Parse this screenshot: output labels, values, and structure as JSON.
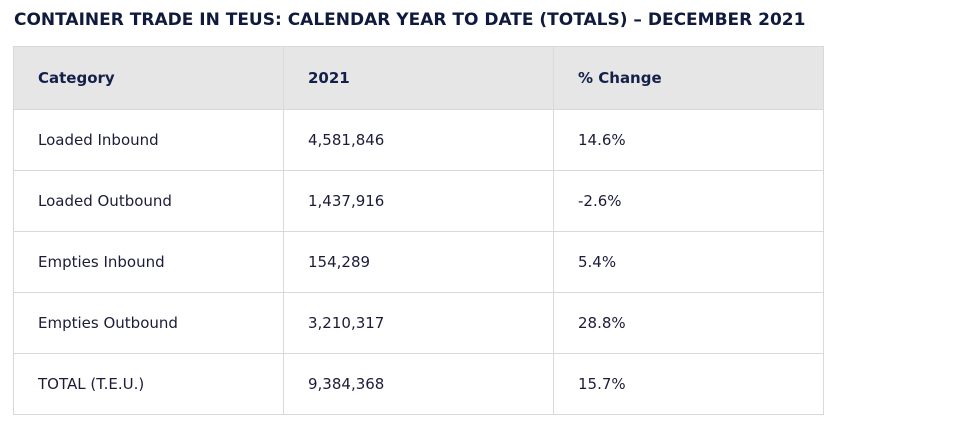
{
  "title": "CONTAINER TRADE IN TEUS: CALENDAR YEAR TO DATE (TOTALS) – DECEMBER 2021",
  "table": {
    "headers": [
      "Category",
      "2021",
      "% Change"
    ],
    "rows": [
      [
        "Loaded Inbound",
        "4,581,846",
        "14.6%"
      ],
      [
        "Loaded Outbound",
        "1,437,916",
        "-2.6%"
      ],
      [
        "Empties Inbound",
        "154,289",
        "5.4%"
      ],
      [
        "Empties Outbound",
        "3,210,317",
        "28.8%"
      ],
      [
        "TOTAL (T.E.U.)",
        "9,384,368",
        "15.7%"
      ]
    ]
  }
}
